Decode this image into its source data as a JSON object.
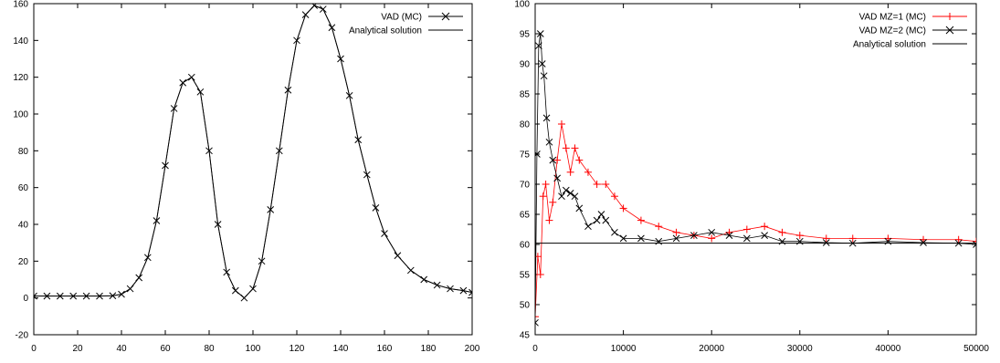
{
  "chart_data": [
    {
      "type": "scatter",
      "title": "",
      "xlabel": "",
      "ylabel": "",
      "xlim": [
        0,
        200
      ],
      "ylim": [
        -20,
        160
      ],
      "x_ticks": [
        0,
        20,
        40,
        60,
        80,
        100,
        120,
        140,
        160,
        180,
        200
      ],
      "y_ticks": [
        -20,
        0,
        20,
        40,
        60,
        80,
        100,
        120,
        140,
        160
      ],
      "grid": false,
      "legend_position": "top-right",
      "series": [
        {
          "name": "VAD (MC)",
          "kind": "points",
          "marker": "cross",
          "color": "#000000",
          "x": [
            0,
            6,
            12,
            18,
            24,
            30,
            36,
            40,
            44,
            48,
            52,
            56,
            60,
            64,
            68,
            72,
            76,
            80,
            84,
            88,
            92,
            96,
            100,
            104,
            108,
            112,
            116,
            120,
            124,
            128,
            132,
            136,
            140,
            144,
            148,
            152,
            156,
            160,
            166,
            172,
            178,
            184,
            190,
            196,
            200
          ],
          "y": [
            1,
            1,
            1,
            1,
            1,
            1,
            1.2,
            2,
            5,
            11,
            22,
            42,
            72,
            103,
            117,
            120,
            112,
            80,
            40,
            14,
            4,
            0,
            5,
            20,
            48,
            80,
            113,
            140,
            154,
            159,
            157,
            147,
            130,
            110,
            86,
            67,
            49,
            35,
            23,
            15,
            10,
            7,
            5,
            4,
            3
          ]
        },
        {
          "name": "Analytical solution",
          "kind": "line",
          "color": "#000000",
          "x": [
            0,
            6,
            12,
            18,
            24,
            30,
            36,
            40,
            44,
            48,
            52,
            56,
            60,
            64,
            68,
            72,
            76,
            80,
            84,
            88,
            92,
            96,
            100,
            104,
            108,
            112,
            116,
            120,
            124,
            128,
            132,
            136,
            140,
            144,
            148,
            152,
            156,
            160,
            166,
            172,
            178,
            184,
            190,
            196,
            200
          ],
          "y": [
            1,
            1,
            1,
            1,
            1,
            1,
            1.2,
            2,
            5,
            11,
            22,
            42,
            72,
            103,
            117,
            120,
            112,
            80,
            40,
            14,
            4,
            0,
            5,
            20,
            48,
            80,
            113,
            140,
            154,
            159,
            157,
            147,
            130,
            110,
            86,
            67,
            49,
            35,
            23,
            15,
            10,
            7,
            5,
            4,
            3
          ]
        }
      ]
    },
    {
      "type": "line",
      "title": "",
      "xlabel": "",
      "ylabel": "",
      "xlim": [
        0,
        50000
      ],
      "ylim": [
        45,
        100
      ],
      "x_ticks": [
        0,
        10000,
        20000,
        30000,
        40000,
        50000
      ],
      "y_ticks": [
        45,
        50,
        55,
        60,
        65,
        70,
        75,
        80,
        85,
        90,
        95,
        100
      ],
      "grid": false,
      "legend_position": "top-right",
      "series": [
        {
          "name": "VAD MZ=1 (MC)",
          "kind": "points",
          "marker": "plus",
          "color": "#ff0000",
          "x": [
            0,
            300,
            600,
            900,
            1200,
            1600,
            2000,
            2500,
            3000,
            3500,
            4000,
            4500,
            5000,
            6000,
            7000,
            8000,
            9000,
            10000,
            12000,
            14000,
            16000,
            18000,
            20000,
            22000,
            24000,
            26000,
            28000,
            30000,
            33000,
            36000,
            40000,
            44000,
            48000,
            50000
          ],
          "y": [
            48,
            58,
            55,
            68,
            70,
            64,
            67,
            74,
            80,
            76,
            72,
            76,
            74,
            72,
            70,
            70,
            68,
            66,
            64,
            63,
            62,
            61.5,
            61,
            62,
            62.5,
            63,
            62,
            61.5,
            61,
            61,
            61,
            60.8,
            60.8,
            60.5
          ]
        },
        {
          "name": "VAD MZ=2 (MC)",
          "kind": "points",
          "marker": "cross",
          "color": "#000000",
          "x": [
            0,
            200,
            400,
            600,
            800,
            1000,
            1300,
            1600,
            2000,
            2500,
            3000,
            3500,
            4000,
            4500,
            5000,
            6000,
            7000,
            7500,
            8000,
            9000,
            10000,
            12000,
            14000,
            16000,
            18000,
            20000,
            22000,
            24000,
            26000,
            28000,
            30000,
            33000,
            36000,
            40000,
            44000,
            48000,
            50000
          ],
          "y": [
            47,
            75,
            93,
            95,
            90,
            88,
            81,
            77,
            74,
            71,
            68,
            69,
            68.5,
            68,
            66,
            63,
            64,
            65,
            64,
            62,
            61,
            61,
            60.5,
            61,
            61.5,
            62,
            61.5,
            61,
            61.5,
            60.5,
            60.5,
            60.3,
            60.2,
            60.5,
            60.3,
            60.2,
            60
          ]
        },
        {
          "name": "Analytical solution",
          "kind": "line",
          "color": "#000000",
          "x": [
            0,
            50000
          ],
          "y": [
            60.2,
            60.2
          ]
        }
      ]
    }
  ]
}
